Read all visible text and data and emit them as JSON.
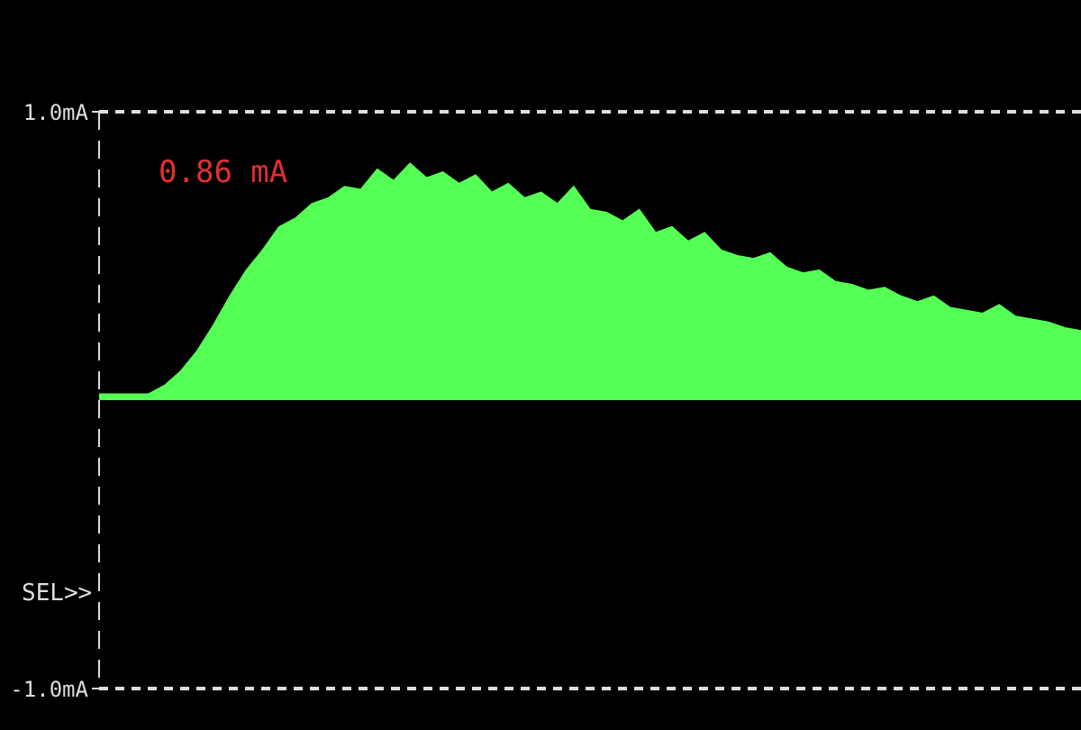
{
  "chart_data": {
    "type": "area",
    "categories": [
      null,
      null,
      null,
      null,
      null,
      null,
      null,
      null,
      null,
      null,
      null,
      null,
      null,
      null,
      null,
      null,
      null,
      null,
      null,
      null,
      null,
      null,
      null,
      null,
      null,
      null,
      null,
      null,
      null,
      null,
      null,
      null,
      null,
      null,
      null,
      null,
      null,
      null,
      null,
      null,
      null,
      null,
      null,
      null,
      null,
      null,
      null,
      null,
      null,
      null,
      null,
      null,
      null,
      null,
      null,
      null,
      null,
      null,
      null,
      null,
      null
    ],
    "series": [
      {
        "color": "#55ff55",
        "values": [
          0.02,
          0.02,
          0.02,
          0.02,
          0.05,
          0.1,
          0.17,
          0.26,
          0.36,
          0.45,
          0.52,
          0.6,
          0.63,
          0.68,
          0.7,
          0.74,
          0.73,
          0.8,
          0.76,
          0.82,
          0.77,
          0.79,
          0.75,
          0.78,
          0.72,
          0.75,
          0.7,
          0.72,
          0.68,
          0.74,
          0.66,
          0.65,
          0.62,
          0.66,
          0.58,
          0.6,
          0.55,
          0.58,
          0.52,
          0.5,
          0.49,
          0.51,
          0.46,
          0.44,
          0.45,
          0.41,
          0.4,
          0.38,
          0.39,
          0.36,
          0.34,
          0.36,
          0.32,
          0.31,
          0.3,
          0.33,
          0.29,
          0.28,
          0.27,
          0.25,
          0.24
        ]
      }
    ],
    "ylim": [
      -1,
      1
    ],
    "yticks": [
      {
        "value": -1,
        "label": "-1.0mA"
      },
      {
        "value": 1,
        "label": "1.0mA"
      }
    ],
    "grid": "y",
    "tick_labels": "y",
    "annotations": [
      "0.86 mA",
      "SEL>>"
    ]
  }
}
